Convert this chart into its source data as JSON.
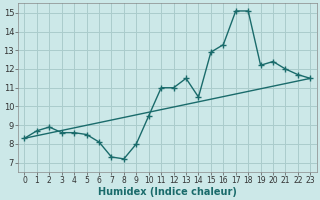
{
  "title": "",
  "xlabel": "Humidex (Indice chaleur)",
  "ylabel": "",
  "bg_color": "#cce8e8",
  "grid_color": "#aacccc",
  "line_color": "#1a6b6b",
  "xlim": [
    -0.5,
    23.5
  ],
  "ylim": [
    6.5,
    15.5
  ],
  "yticks": [
    7,
    8,
    9,
    10,
    11,
    12,
    13,
    14,
    15
  ],
  "xticks": [
    0,
    1,
    2,
    3,
    4,
    5,
    6,
    7,
    8,
    9,
    10,
    11,
    12,
    13,
    14,
    15,
    16,
    17,
    18,
    19,
    20,
    21,
    22,
    23
  ],
  "series1_x": [
    0,
    1,
    2,
    3,
    4,
    5,
    6,
    7,
    8,
    9,
    10,
    11,
    12,
    13,
    14,
    15,
    16,
    17,
    18,
    19,
    20,
    21,
    22,
    23
  ],
  "series1_y": [
    8.3,
    8.7,
    8.9,
    8.6,
    8.6,
    8.5,
    8.1,
    7.3,
    7.2,
    8.0,
    9.5,
    11.0,
    11.0,
    11.5,
    10.5,
    12.9,
    13.3,
    15.1,
    15.1,
    12.2,
    12.4,
    12.0,
    11.7,
    11.5
  ],
  "series2_x": [
    0,
    23
  ],
  "series2_y": [
    8.3,
    11.5
  ]
}
